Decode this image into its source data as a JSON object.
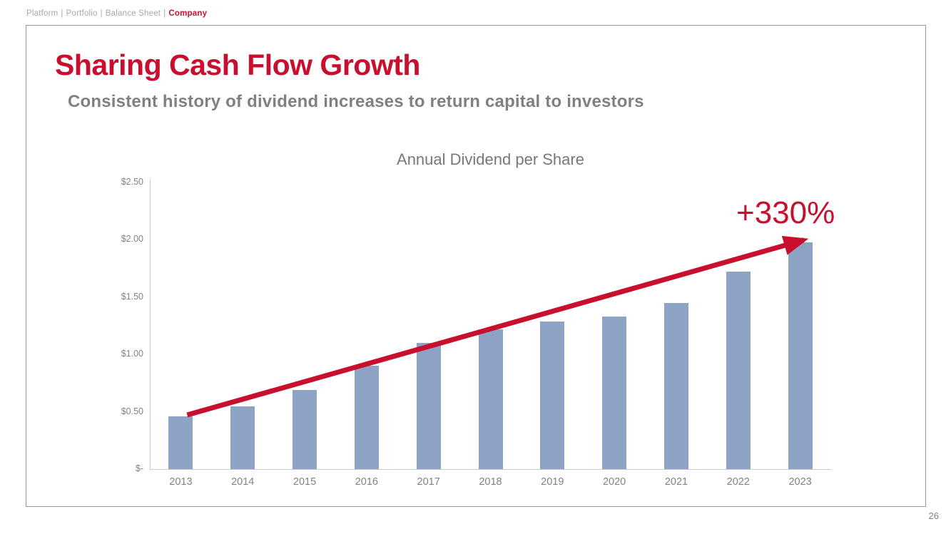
{
  "breadcrumb": {
    "items": [
      "Platform",
      "Portfolio",
      "Balance Sheet"
    ],
    "active": "Company",
    "separator": "|"
  },
  "slide": {
    "title": "Sharing Cash Flow Growth",
    "subtitle": "Consistent history of dividend increases to return capital to investors",
    "page_number": "26"
  },
  "chart_data": {
    "type": "bar",
    "title": "Annual Dividend per Share",
    "categories": [
      "2013",
      "2014",
      "2015",
      "2016",
      "2017",
      "2018",
      "2019",
      "2020",
      "2021",
      "2022",
      "2023"
    ],
    "values": [
      0.46,
      0.55,
      0.69,
      0.9,
      1.1,
      1.22,
      1.29,
      1.33,
      1.45,
      1.72,
      1.98
    ],
    "ylim": [
      0,
      2.5
    ],
    "y_ticks": [
      {
        "value": 2.5,
        "label": "$2.50"
      },
      {
        "value": 2.0,
        "label": "$2.00"
      },
      {
        "value": 1.5,
        "label": "$1.50"
      },
      {
        "value": 1.0,
        "label": "$1.00"
      },
      {
        "value": 0.5,
        "label": "$0.50"
      },
      {
        "value": 0.0,
        "label": "$-"
      }
    ],
    "grid": false,
    "legend": "none",
    "bar_color": "#8da3c5",
    "annotation": "+330%",
    "annotation_color": "#c8102e",
    "arrow": {
      "from_category": "2013",
      "to_category": "2023",
      "color": "#c8102e"
    }
  },
  "colors": {
    "accent_red": "#c8102e",
    "subtitle_gray": "#7e8083",
    "axis_gray": "#808285",
    "bar_blue": "#8da3c5",
    "frame_border": "#98999c"
  }
}
